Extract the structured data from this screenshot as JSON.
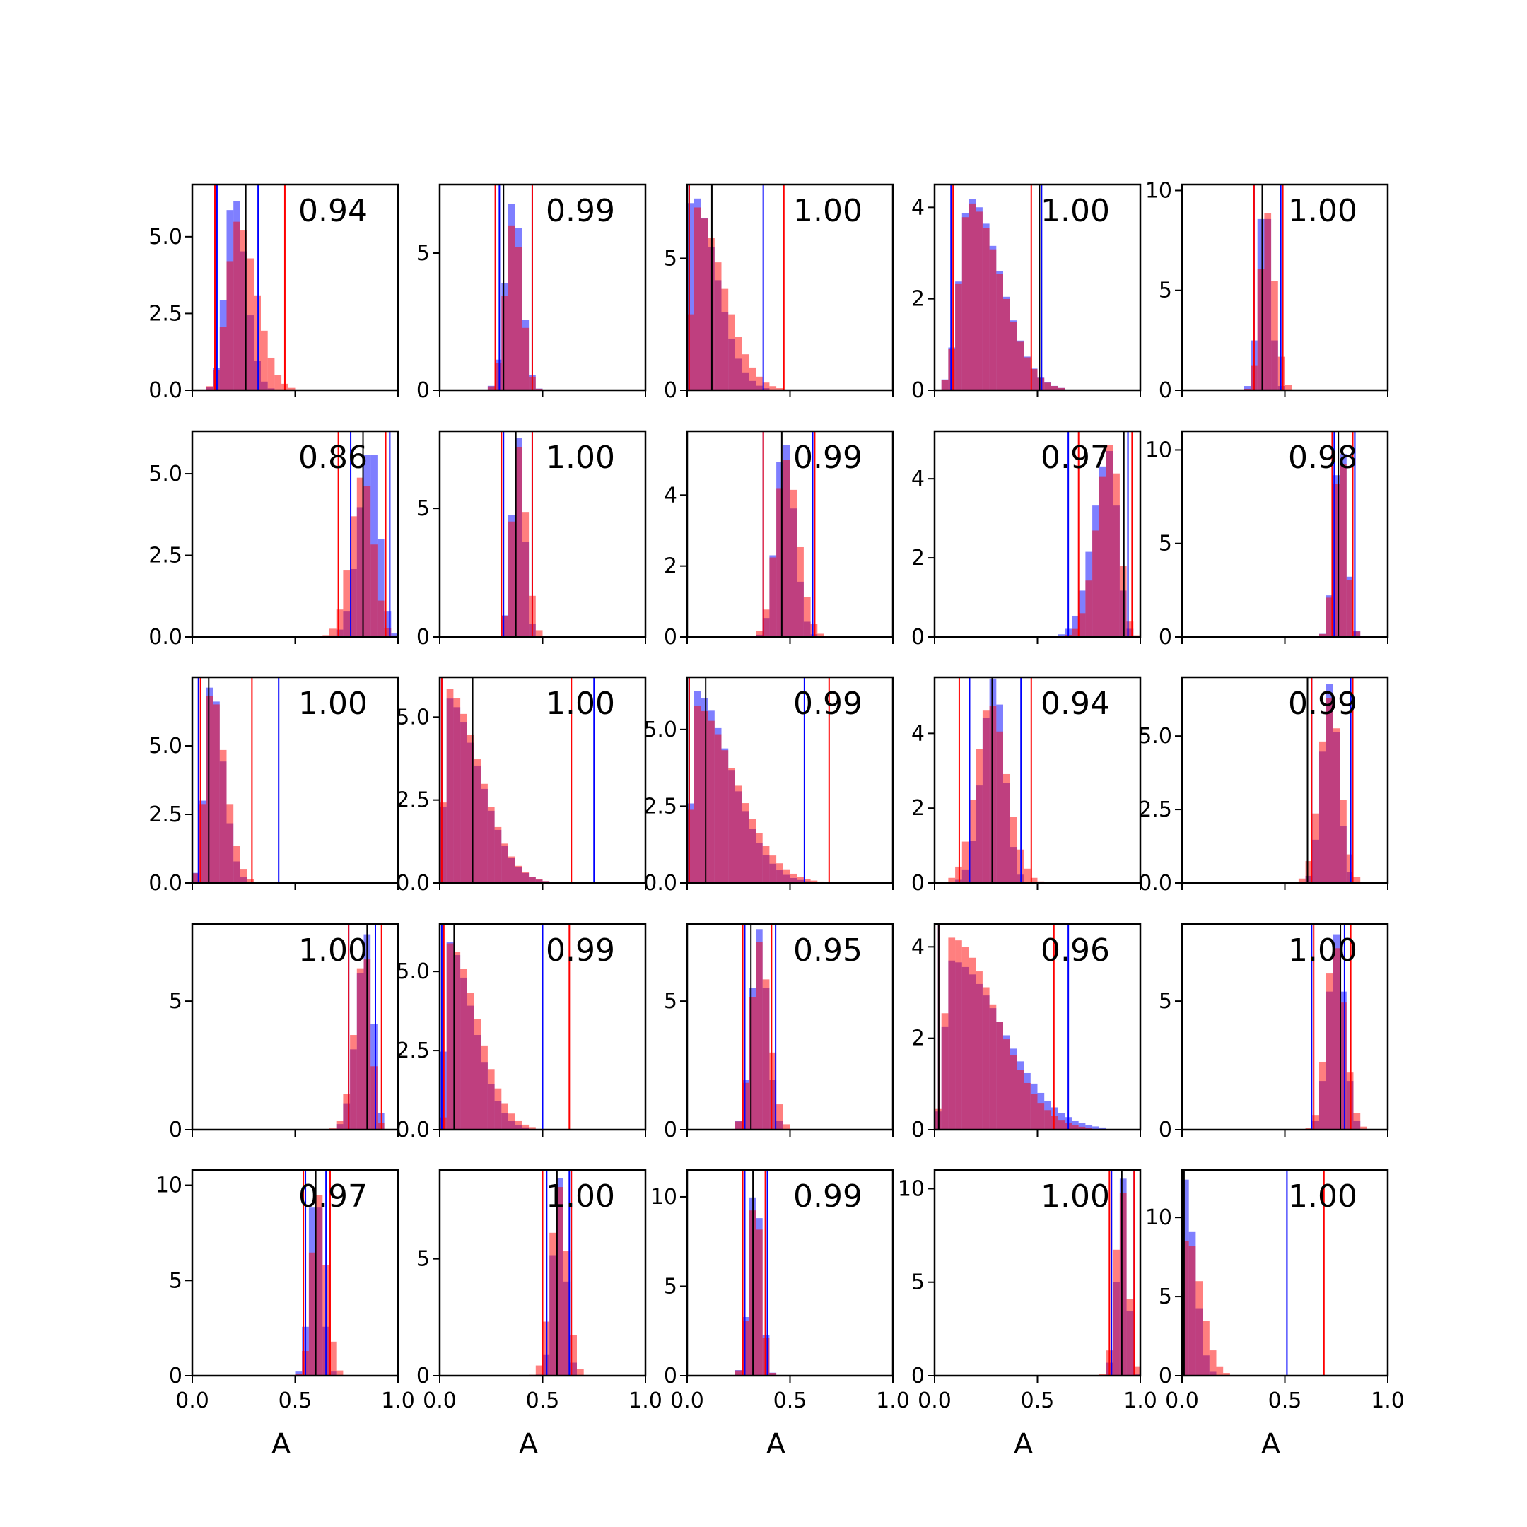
{
  "chart_data": {
    "type": "histogram-grid",
    "rows": 5,
    "cols": 5,
    "xlim": [
      0,
      1
    ],
    "xticks": [
      "0.0",
      "0.5",
      "1.0"
    ],
    "xlabel": "A",
    "colors": {
      "blue": "#0000ff",
      "red": "#ff0000",
      "black": "#000000"
    },
    "panels": [
      {
        "score": "0.94",
        "ylim": [
          0,
          6.7
        ],
        "yticks": [
          0,
          2.5,
          5.0
        ],
        "ytick_labels": [
          "0.0",
          "2.5",
          "5.0"
        ],
        "blue": {
          "peak": 0.2,
          "spread_left": 0.04,
          "spread_right": 0.06,
          "max": 6.4
        },
        "red": {
          "peak": 0.22,
          "spread_left": 0.05,
          "spread_right": 0.09,
          "max": 5.5
        },
        "blue_lines": [
          0.12,
          0.32
        ],
        "red_lines": [
          0.11,
          0.45
        ],
        "black_line": 0.26
      },
      {
        "score": "0.99",
        "ylim": [
          0,
          7.5
        ],
        "yticks": [
          0,
          5
        ],
        "ytick_labels": [
          "0",
          "5"
        ],
        "blue": {
          "peak": 0.36,
          "spread_left": 0.04,
          "spread_right": 0.04,
          "max": 7.0
        },
        "red": {
          "peak": 0.36,
          "spread_left": 0.04,
          "spread_right": 0.04,
          "max": 6.2
        },
        "blue_lines": [
          0.29,
          0.45
        ],
        "red_lines": [
          0.27,
          0.45
        ],
        "black_line": 0.31
      },
      {
        "score": "1.00",
        "ylim": [
          0,
          7.8
        ],
        "yticks": [
          0,
          5
        ],
        "ytick_labels": [
          "0",
          "5"
        ],
        "blue": {
          "peak": 0.02,
          "spread_left": 0.01,
          "spread_right": 0.12,
          "max": 7.5
        },
        "red": {
          "peak": 0.03,
          "spread_left": 0.01,
          "spread_right": 0.14,
          "max": 7.0
        },
        "blue_lines": [
          0.01,
          0.37
        ],
        "red_lines": [
          0.01,
          0.47
        ],
        "black_line": 0.12
      },
      {
        "score": "1.00",
        "ylim": [
          0,
          4.5
        ],
        "yticks": [
          0,
          2,
          4
        ],
        "ytick_labels": [
          "0",
          "2",
          "4"
        ],
        "blue": {
          "peak": 0.17,
          "spread_left": 0.05,
          "spread_right": 0.15,
          "max": 4.2
        },
        "red": {
          "peak": 0.17,
          "spread_left": 0.05,
          "spread_right": 0.15,
          "max": 4.1
        },
        "blue_lines": [
          0.08,
          0.52
        ],
        "red_lines": [
          0.09,
          0.47
        ],
        "black_line": 0.51
      },
      {
        "score": "1.00",
        "ylim": [
          0,
          10.3
        ],
        "yticks": [
          0,
          5,
          10
        ],
        "ytick_labels": [
          "0",
          "5",
          "10"
        ],
        "blue": {
          "peak": 0.4,
          "spread_left": 0.03,
          "spread_right": 0.03,
          "max": 10.0
        },
        "red": {
          "peak": 0.41,
          "spread_left": 0.03,
          "spread_right": 0.04,
          "max": 9.0
        },
        "blue_lines": [
          0.35,
          0.48
        ],
        "red_lines": [
          0.35,
          0.49
        ],
        "black_line": 0.39
      },
      {
        "score": "0.86",
        "ylim": [
          0,
          6.3
        ],
        "yticks": [
          0,
          2.5,
          5.0
        ],
        "ytick_labels": [
          "0.0",
          "2.5",
          "5.0"
        ],
        "blue": {
          "peak": 0.87,
          "spread_left": 0.06,
          "spread_right": 0.04,
          "max": 5.9
        },
        "red": {
          "peak": 0.83,
          "spread_left": 0.06,
          "spread_right": 0.05,
          "max": 5.0
        },
        "blue_lines": [
          0.77,
          0.96
        ],
        "red_lines": [
          0.71,
          0.94
        ],
        "black_line": 0.83
      },
      {
        "score": "1.00",
        "ylim": [
          0,
          8.0
        ],
        "yticks": [
          0,
          5
        ],
        "ytick_labels": [
          "0",
          "5"
        ],
        "blue": {
          "peak": 0.38,
          "spread_left": 0.03,
          "spread_right": 0.03,
          "max": 7.8
        },
        "red": {
          "peak": 0.38,
          "spread_left": 0.03,
          "spread_right": 0.04,
          "max": 7.4
        },
        "blue_lines": [
          0.31,
          0.45
        ],
        "red_lines": [
          0.3,
          0.45
        ],
        "black_line": 0.37
      },
      {
        "score": "0.99",
        "ylim": [
          0,
          5.8
        ],
        "yticks": [
          0,
          2,
          4
        ],
        "ytick_labels": [
          "0",
          "2",
          "4"
        ],
        "blue": {
          "peak": 0.47,
          "spread_left": 0.04,
          "spread_right": 0.05,
          "max": 5.6
        },
        "red": {
          "peak": 0.48,
          "spread_left": 0.05,
          "spread_right": 0.06,
          "max": 5.0
        },
        "blue_lines": [
          0.37,
          0.61
        ],
        "red_lines": [
          0.37,
          0.62
        ],
        "black_line": 0.46
      },
      {
        "score": "0.97",
        "ylim": [
          0,
          5.2
        ],
        "yticks": [
          0,
          2,
          4
        ],
        "ytick_labels": [
          "0",
          "2",
          "4"
        ],
        "blue": {
          "peak": 0.85,
          "spread_left": 0.08,
          "spread_right": 0.04,
          "max": 4.7
        },
        "red": {
          "peak": 0.86,
          "spread_left": 0.07,
          "spread_right": 0.04,
          "max": 4.9
        },
        "blue_lines": [
          0.65,
          0.94
        ],
        "red_lines": [
          0.7,
          0.96
        ],
        "black_line": 0.92
      },
      {
        "score": "0.98",
        "ylim": [
          0,
          11.0
        ],
        "yticks": [
          0,
          5,
          10
        ],
        "ytick_labels": [
          "0",
          "5",
          "10"
        ],
        "blue": {
          "peak": 0.77,
          "spread_left": 0.03,
          "spread_right": 0.03,
          "max": 10.8
        },
        "red": {
          "peak": 0.77,
          "spread_left": 0.03,
          "spread_right": 0.03,
          "max": 10.2
        },
        "blue_lines": [
          0.74,
          0.84
        ],
        "red_lines": [
          0.73,
          0.83
        ],
        "black_line": 0.76
      },
      {
        "score": "1.00",
        "ylim": [
          0,
          7.5
        ],
        "yticks": [
          0,
          2.5,
          5.0
        ],
        "ytick_labels": [
          "0.0",
          "2.5",
          "5.0"
        ],
        "blue": {
          "peak": 0.09,
          "spread_left": 0.03,
          "spread_right": 0.06,
          "max": 7.3
        },
        "red": {
          "peak": 0.09,
          "spread_left": 0.03,
          "spread_right": 0.07,
          "max": 7.0
        },
        "blue_lines": [
          0.03,
          0.42
        ],
        "red_lines": [
          0.04,
          0.29
        ],
        "black_line": 0.08
      },
      {
        "score": "1.00",
        "ylim": [
          0,
          6.2
        ],
        "yticks": [
          0,
          2.5,
          5.0
        ],
        "ytick_labels": [
          "0.0",
          "2.5",
          "5.0"
        ],
        "blue": {
          "peak": 0.03,
          "spread_left": 0.01,
          "spread_right": 0.16,
          "max": 5.6
        },
        "red": {
          "peak": 0.03,
          "spread_left": 0.01,
          "spread_right": 0.16,
          "max": 5.9
        },
        "blue_lines": [
          0.01,
          0.75
        ],
        "red_lines": [
          0.01,
          0.64
        ],
        "black_line": 0.16
      },
      {
        "score": "0.99",
        "ylim": [
          0,
          6.7
        ],
        "yticks": [
          0,
          2.5,
          5.0
        ],
        "ytick_labels": [
          "0.0",
          "2.5",
          "5.0"
        ],
        "blue": {
          "peak": 0.03,
          "spread_left": 0.01,
          "spread_right": 0.18,
          "max": 6.3
        },
        "red": {
          "peak": 0.03,
          "spread_left": 0.01,
          "spread_right": 0.2,
          "max": 5.8
        },
        "blue_lines": [
          0.01,
          0.57
        ],
        "red_lines": [
          0.01,
          0.69
        ],
        "black_line": 0.09
      },
      {
        "score": "0.94",
        "ylim": [
          0,
          5.5
        ],
        "yticks": [
          0,
          2,
          4
        ],
        "ytick_labels": [
          "0",
          "2",
          "4"
        ],
        "blue": {
          "peak": 0.29,
          "spread_left": 0.06,
          "spread_right": 0.05,
          "max": 5.5
        },
        "red": {
          "peak": 0.27,
          "spread_left": 0.07,
          "spread_right": 0.08,
          "max": 4.8
        },
        "blue_lines": [
          0.17,
          0.42
        ],
        "red_lines": [
          0.12,
          0.47
        ],
        "black_line": 0.28
      },
      {
        "score": "0.99",
        "ylim": [
          0,
          7.0
        ],
        "yticks": [
          0,
          2.5,
          5.0
        ],
        "ytick_labels": [
          "0.0",
          "2.5",
          "5.0"
        ],
        "blue": {
          "peak": 0.72,
          "spread_left": 0.04,
          "spread_right": 0.04,
          "max": 6.8
        },
        "red": {
          "peak": 0.72,
          "spread_left": 0.05,
          "spread_right": 0.05,
          "max": 6.3
        },
        "blue_lines": [
          0.63,
          0.82
        ],
        "red_lines": [
          0.63,
          0.83
        ],
        "black_line": 0.61
      },
      {
        "score": "1.00",
        "ylim": [
          0,
          8.0
        ],
        "yticks": [
          0,
          5
        ],
        "ytick_labels": [
          "0",
          "5"
        ],
        "blue": {
          "peak": 0.85,
          "spread_left": 0.05,
          "spread_right": 0.03,
          "max": 7.6
        },
        "red": {
          "peak": 0.84,
          "spread_left": 0.05,
          "spread_right": 0.03,
          "max": 7.0
        },
        "blue_lines": [
          0.76,
          0.89
        ],
        "red_lines": [
          0.76,
          0.92
        ],
        "black_line": 0.85
      },
      {
        "score": "0.99",
        "ylim": [
          0,
          6.5
        ],
        "yticks": [
          0,
          2.5,
          5.0
        ],
        "ytick_labels": [
          "0.0",
          "2.5",
          "5.0"
        ],
        "blue": {
          "peak": 0.03,
          "spread_left": 0.01,
          "spread_right": 0.13,
          "max": 6.0
        },
        "red": {
          "peak": 0.04,
          "spread_left": 0.01,
          "spread_right": 0.14,
          "max": 5.9
        },
        "blue_lines": [
          0.01,
          0.5
        ],
        "red_lines": [
          0.02,
          0.63
        ],
        "black_line": 0.07
      },
      {
        "score": "0.95",
        "ylim": [
          0,
          8.0
        ],
        "yticks": [
          0,
          5
        ],
        "ytick_labels": [
          "0",
          "5"
        ],
        "blue": {
          "peak": 0.35,
          "spread_left": 0.04,
          "spread_right": 0.04,
          "max": 7.8
        },
        "red": {
          "peak": 0.35,
          "spread_left": 0.04,
          "spread_right": 0.05,
          "max": 7.3
        },
        "blue_lines": [
          0.28,
          0.43
        ],
        "red_lines": [
          0.27,
          0.41
        ],
        "black_line": 0.31
      },
      {
        "score": "0.96",
        "ylim": [
          0,
          4.5
        ],
        "yticks": [
          0,
          2,
          4
        ],
        "ytick_labels": [
          "0",
          "2",
          "4"
        ],
        "blue": {
          "peak": 0.08,
          "spread_left": 0.03,
          "spread_right": 0.25,
          "max": 3.7
        },
        "red": {
          "peak": 0.08,
          "spread_left": 0.03,
          "spread_right": 0.22,
          "max": 4.2
        },
        "blue_lines": [
          0.02,
          0.65
        ],
        "red_lines": [
          0.02,
          0.58
        ],
        "black_line": 0.02
      },
      {
        "score": "1.00",
        "ylim": [
          0,
          8.0
        ],
        "yticks": [
          0,
          5
        ],
        "ytick_labels": [
          "0",
          "5"
        ],
        "blue": {
          "peak": 0.75,
          "spread_left": 0.04,
          "spread_right": 0.04,
          "max": 7.6
        },
        "red": {
          "peak": 0.74,
          "spread_left": 0.04,
          "spread_right": 0.05,
          "max": 7.2
        },
        "blue_lines": [
          0.63,
          0.79
        ],
        "red_lines": [
          0.64,
          0.82
        ],
        "black_line": 0.77
      },
      {
        "score": "0.97",
        "ylim": [
          0,
          10.8
        ],
        "yticks": [
          0,
          5,
          10
        ],
        "ytick_labels": [
          "0",
          "5",
          "10"
        ],
        "blue": {
          "peak": 0.6,
          "spread_left": 0.03,
          "spread_right": 0.03,
          "max": 10.3
        },
        "red": {
          "peak": 0.61,
          "spread_left": 0.03,
          "spread_right": 0.04,
          "max": 9.6
        },
        "blue_lines": [
          0.55,
          0.65
        ],
        "red_lines": [
          0.54,
          0.67
        ],
        "black_line": 0.6
      },
      {
        "score": "1.00",
        "ylim": [
          0,
          8.8
        ],
        "yticks": [
          0,
          5
        ],
        "ytick_labels": [
          "0",
          "5"
        ],
        "blue": {
          "peak": 0.58,
          "spread_left": 0.03,
          "spread_right": 0.03,
          "max": 8.5
        },
        "red": {
          "peak": 0.58,
          "spread_left": 0.04,
          "spread_right": 0.04,
          "max": 8.1
        },
        "blue_lines": [
          0.52,
          0.63
        ],
        "red_lines": [
          0.5,
          0.64
        ],
        "black_line": 0.57
      },
      {
        "score": "0.99",
        "ylim": [
          0,
          11.5
        ],
        "yticks": [
          0,
          5,
          10
        ],
        "ytick_labels": [
          "0",
          "5",
          "10"
        ],
        "blue": {
          "peak": 0.33,
          "spread_left": 0.03,
          "spread_right": 0.03,
          "max": 11.0
        },
        "red": {
          "peak": 0.33,
          "spread_left": 0.03,
          "spread_right": 0.03,
          "max": 10.2
        },
        "blue_lines": [
          0.28,
          0.39
        ],
        "red_lines": [
          0.27,
          0.38
        ],
        "black_line": 0.32
      },
      {
        "score": "1.00",
        "ylim": [
          0,
          11.0
        ],
        "yticks": [
          0,
          5,
          10
        ],
        "ytick_labels": [
          "0",
          "5",
          "10"
        ],
        "blue": {
          "peak": 0.92,
          "spread_left": 0.03,
          "spread_right": 0.02,
          "max": 10.6
        },
        "red": {
          "peak": 0.91,
          "spread_left": 0.03,
          "spread_right": 0.03,
          "max": 10.0
        },
        "blue_lines": [
          0.86,
          0.97
        ],
        "red_lines": [
          0.85,
          0.97
        ],
        "black_line": 0.91
      },
      {
        "score": "1.00",
        "ylim": [
          0,
          13.0
        ],
        "yticks": [
          0,
          5,
          10
        ],
        "ytick_labels": [
          "0",
          "5",
          "10"
        ],
        "blue": {
          "peak": 0.01,
          "spread_left": 0.01,
          "spread_right": 0.05,
          "max": 12.5
        },
        "red": {
          "peak": 0.02,
          "spread_left": 0.01,
          "spread_right": 0.07,
          "max": 9.0
        },
        "blue_lines": [
          0.51
        ],
        "red_lines": [
          0.69
        ],
        "black_line": 0.01
      }
    ]
  }
}
